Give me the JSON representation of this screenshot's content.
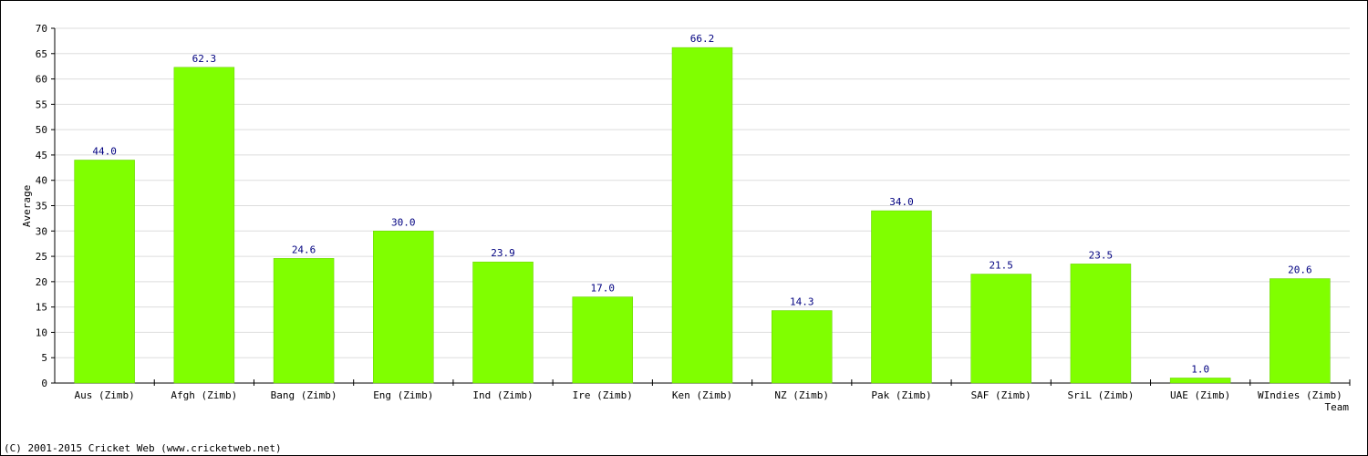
{
  "chart_data": {
    "type": "bar",
    "categories": [
      "Aus (Zimb)",
      "Afgh (Zimb)",
      "Bang (Zimb)",
      "Eng (Zimb)",
      "Ind (Zimb)",
      "Ire (Zimb)",
      "Ken (Zimb)",
      "NZ (Zimb)",
      "Pak (Zimb)",
      "SAF (Zimb)",
      "SriL (Zimb)",
      "UAE (Zimb)",
      "WIndies (Zimb)"
    ],
    "values": [
      44.0,
      62.3,
      24.6,
      30.0,
      23.9,
      17.0,
      66.2,
      14.3,
      34.0,
      21.5,
      23.5,
      1.0,
      20.6
    ],
    "value_labels": [
      "44.0",
      "62.3",
      "24.6",
      "30.0",
      "23.9",
      "17.0",
      "66.2",
      "14.3",
      "34.0",
      "21.5",
      "23.5",
      "1.0",
      "20.6"
    ],
    "xlabel": "Team",
    "ylabel": "Average",
    "ylim": [
      0,
      70
    ],
    "yticks": [
      0,
      5,
      10,
      15,
      20,
      25,
      30,
      35,
      40,
      45,
      50,
      55,
      60,
      65,
      70
    ],
    "grid": true,
    "bar_color": "#80ff00",
    "value_label_color": "#000080"
  },
  "footer": {
    "copyright": "(C) 2001-2015 Cricket Web (www.cricketweb.net)"
  }
}
